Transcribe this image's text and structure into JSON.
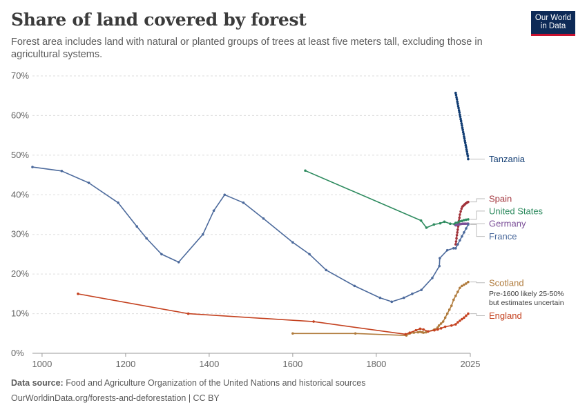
{
  "header": {
    "title": "Share of land covered by forest",
    "subtitle": "Forest area includes land with natural or planted groups of trees at least five meters tall, excluding those in agricultural systems.",
    "logo_line1": "Our World",
    "logo_line2": "in Data"
  },
  "footer": {
    "source_label": "Data source:",
    "source_text": "Food and Agriculture Organization of the United Nations and historical sources",
    "url_text": "OurWorldinData.org/forests-and-deforestation | CC BY"
  },
  "chart_data": {
    "type": "line",
    "title": "Share of land covered by forest",
    "xlabel": "",
    "ylabel": "",
    "xlim": [
      977,
      2025
    ],
    "ylim": [
      0,
      70
    ],
    "x_ticks": [
      1000,
      1200,
      1400,
      1600,
      1800,
      2025
    ],
    "x_tick_labels": [
      "1000",
      "1200",
      "1400",
      "1600",
      "1800",
      "2025"
    ],
    "y_ticks": [
      0,
      10,
      20,
      30,
      40,
      50,
      60,
      70
    ],
    "y_tick_labels": [
      "0%",
      "10%",
      "20%",
      "30%",
      "40%",
      "50%",
      "60%",
      "70%"
    ],
    "grid": "horizontal-dashed",
    "legend": "right-end labels",
    "series": [
      {
        "name": "Tanzania",
        "color": "#123d73",
        "label_y": 49,
        "x": [
          1990,
          1991,
          1992,
          1993,
          1994,
          1995,
          1996,
          1997,
          1998,
          1999,
          2000,
          2001,
          2002,
          2003,
          2004,
          2005,
          2006,
          2007,
          2008,
          2009,
          2010,
          2011,
          2012,
          2013,
          2014,
          2015,
          2016,
          2017,
          2018,
          2019,
          2020
        ],
        "y": [
          65.7,
          65.2,
          64.6,
          64.1,
          63.5,
          63.0,
          62.4,
          61.9,
          61.3,
          60.8,
          60.2,
          59.7,
          59.1,
          58.6,
          58.0,
          57.5,
          56.9,
          56.4,
          55.8,
          55.3,
          54.7,
          54.2,
          53.6,
          53.1,
          52.5,
          52.0,
          51.4,
          50.9,
          50.3,
          49.8,
          49.0
        ]
      },
      {
        "name": "Spain",
        "color": "#a2333b",
        "label_y": 39,
        "x": [
          1990,
          1991,
          1992,
          1993,
          1994,
          1995,
          1996,
          1997,
          1998,
          1999,
          2000,
          2002,
          2004,
          2006,
          2008,
          2010,
          2012,
          2014,
          2016,
          2018,
          2020
        ],
        "y": [
          27.5,
          28.2,
          29.0,
          29.8,
          30.5,
          31.2,
          32.0,
          32.8,
          33.5,
          34.2,
          35.0,
          35.8,
          36.5,
          37.0,
          37.2,
          37.4,
          37.6,
          37.8,
          37.9,
          38.1,
          38.2
        ]
      },
      {
        "name": "United States",
        "color": "#2e8b5f",
        "label_y": 35.9,
        "x": [
          1630,
          1907,
          1920,
          1938,
          1953,
          1963,
          1977,
          1987,
          1990,
          1995,
          2000,
          2005,
          2010,
          2015,
          2020
        ],
        "y": [
          46.1,
          33.5,
          31.7,
          32.5,
          32.8,
          33.2,
          32.7,
          32.6,
          32.9,
          33.0,
          33.3,
          33.4,
          33.6,
          33.7,
          33.8
        ]
      },
      {
        "name": "Germany",
        "color": "#7b4f98",
        "label_y": 32.7,
        "x": [
          1990,
          1994,
          1998,
          2002,
          2006,
          2010,
          2014,
          2018,
          2020
        ],
        "y": [
          32.3,
          32.4,
          32.5,
          32.6,
          32.7,
          32.7,
          32.7,
          32.7,
          32.7
        ]
      },
      {
        "name": "France",
        "color": "#4c6a9c",
        "label_y": 29.5,
        "x": [
          977,
          1047,
          1112,
          1182,
          1227,
          1250,
          1286,
          1327,
          1385,
          1411,
          1437,
          1482,
          1530,
          1600,
          1640,
          1680,
          1748,
          1809,
          1837,
          1866,
          1886,
          1908,
          1934,
          1951,
          1952,
          1970,
          1985,
          1990,
          1995,
          2000,
          2005,
          2010,
          2015,
          2020
        ],
        "y": [
          47,
          46,
          43,
          38,
          32,
          29,
          25,
          23,
          30,
          36,
          40,
          38,
          34,
          28,
          25,
          21,
          17,
          14,
          13,
          14,
          15,
          16,
          19,
          22,
          24,
          26,
          26.5,
          26.5,
          27.5,
          28.5,
          29.5,
          30.5,
          31.5,
          32.5
        ]
      },
      {
        "name": "Scotland",
        "color": "#b07b3c",
        "label_y": 17.8,
        "note": [
          "Pre-1600 likely 25-50%",
          "but estimates uncertain"
        ],
        "x": [
          1600,
          1750,
          1872,
          1880,
          1890,
          1900,
          1905,
          1910,
          1913,
          1919,
          1924,
          1939,
          1947,
          1950,
          1955,
          1960,
          1965,
          1970,
          1975,
          1980,
          1985,
          1990,
          1995,
          2000,
          2005,
          2010,
          2015,
          2020
        ],
        "y": [
          5,
          5,
          4.5,
          5,
          5.2,
          5.3,
          5.4,
          5.3,
          5.2,
          5.3,
          5.5,
          6,
          6.5,
          7,
          7.5,
          8,
          9,
          10,
          11,
          12,
          13.5,
          14.5,
          15.5,
          16.5,
          17,
          17.3,
          17.6,
          18
        ]
      },
      {
        "name": "England",
        "color": "#c4411f",
        "label_y": 9.5,
        "x": [
          1086,
          1350,
          1650,
          1870,
          1880,
          1895,
          1905,
          1913,
          1924,
          1939,
          1947,
          1955,
          1965,
          1980,
          1990,
          1995,
          2000,
          2005,
          2010,
          2015,
          2020
        ],
        "y": [
          15,
          10,
          8,
          4.8,
          5.2,
          5.8,
          6.2,
          6.0,
          5.5,
          5.8,
          6.0,
          6.3,
          6.7,
          7.0,
          7.3,
          7.8,
          8.2,
          8.6,
          9.0,
          9.5,
          10.0
        ]
      }
    ]
  }
}
